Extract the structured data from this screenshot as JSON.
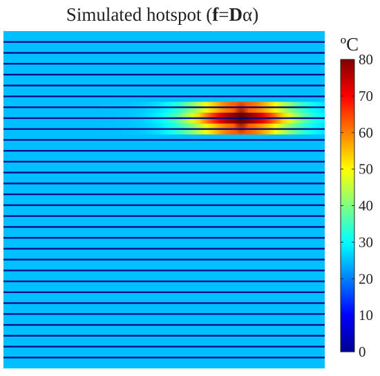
{
  "chart_data": {
    "type": "heatmap",
    "title_plain": "Simulated hotspot (",
    "title_bold_f": "f",
    "title_equals": "=",
    "title_bold_D": "D",
    "title_alpha": "α",
    "title_close": ")",
    "colorbar_unit": "ºC",
    "colorbar_range": [
      0,
      80
    ],
    "colorbar_ticks": [
      "80",
      "70",
      "60",
      "50",
      "40",
      "30",
      "20",
      "10",
      "0"
    ],
    "colormap": "jet",
    "background_temperature": 25,
    "fiber_temperature": 0,
    "fiber_count": 30,
    "hotspot": {
      "peak_temperature": 80,
      "affected_bands": [
        7,
        8,
        9
      ],
      "band_peak_fraction": [
        0.7,
        1.0,
        0.7
      ],
      "center_x_fraction": 0.74,
      "width_fraction": 0.16
    }
  }
}
